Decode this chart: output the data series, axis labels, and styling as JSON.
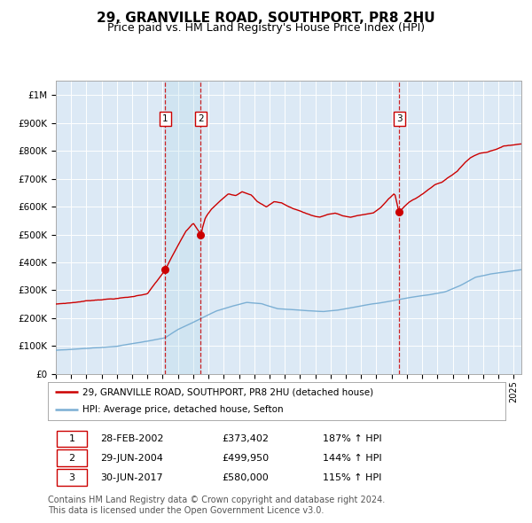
{
  "title": "29, GRANVILLE ROAD, SOUTHPORT, PR8 2HU",
  "subtitle": "Price paid vs. HM Land Registry's House Price Index (HPI)",
  "title_fontsize": 11,
  "subtitle_fontsize": 9,
  "line1_label": "29, GRANVILLE ROAD, SOUTHPORT, PR8 2HU (detached house)",
  "line2_label": "HPI: Average price, detached house, Sefton",
  "line1_color": "#cc0000",
  "line2_color": "#7bafd4",
  "plot_bg_color": "#dce9f5",
  "grid_color": "#ffffff",
  "sale_points": [
    {
      "date_num": 2002.16,
      "price": 373402,
      "label": "1",
      "date_str": "28-FEB-2002",
      "hpi_pct": "187% ↑ HPI"
    },
    {
      "date_num": 2004.49,
      "price": 499950,
      "label": "2",
      "date_str": "29-JUN-2004",
      "hpi_pct": "144% ↑ HPI"
    },
    {
      "date_num": 2017.49,
      "price": 580000,
      "label": "3",
      "date_str": "30-JUN-2017",
      "hpi_pct": "115% ↑ HPI"
    }
  ],
  "ylim": [
    0,
    1050000
  ],
  "xlim": [
    1995,
    2025.5
  ],
  "footnote1": "Contains HM Land Registry data © Crown copyright and database right 2024.",
  "footnote2": "This data is licensed under the Open Government Licence v3.0.",
  "footnote_fontsize": 7
}
